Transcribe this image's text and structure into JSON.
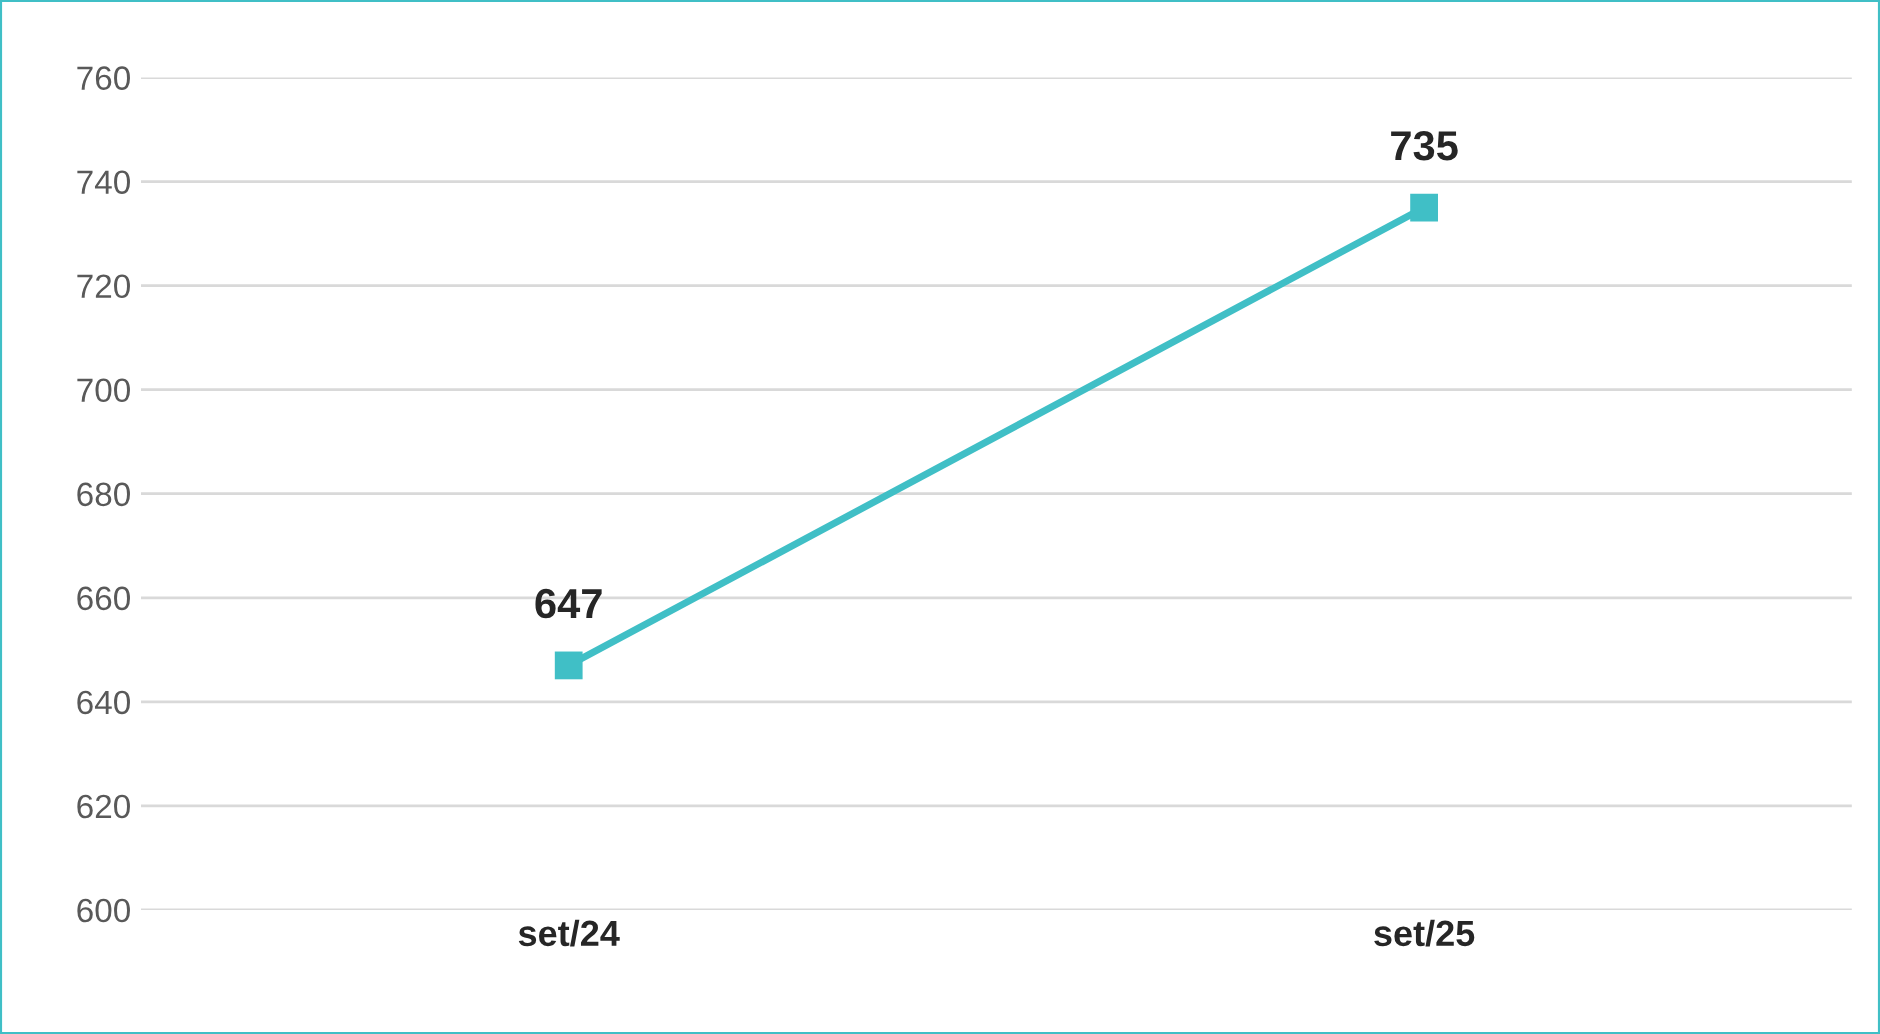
{
  "chart_data": {
    "type": "line",
    "categories": [
      "set/24",
      "set/25"
    ],
    "series": [
      {
        "color": "#40bfc6",
        "values": [
          647,
          735
        ]
      }
    ],
    "ylim": [
      600,
      760
    ],
    "yticks": [
      600,
      620,
      640,
      660,
      680,
      700,
      720,
      740,
      760
    ],
    "grid": "y",
    "marker": "square",
    "line_style": "solid",
    "data_labels": true
  }
}
